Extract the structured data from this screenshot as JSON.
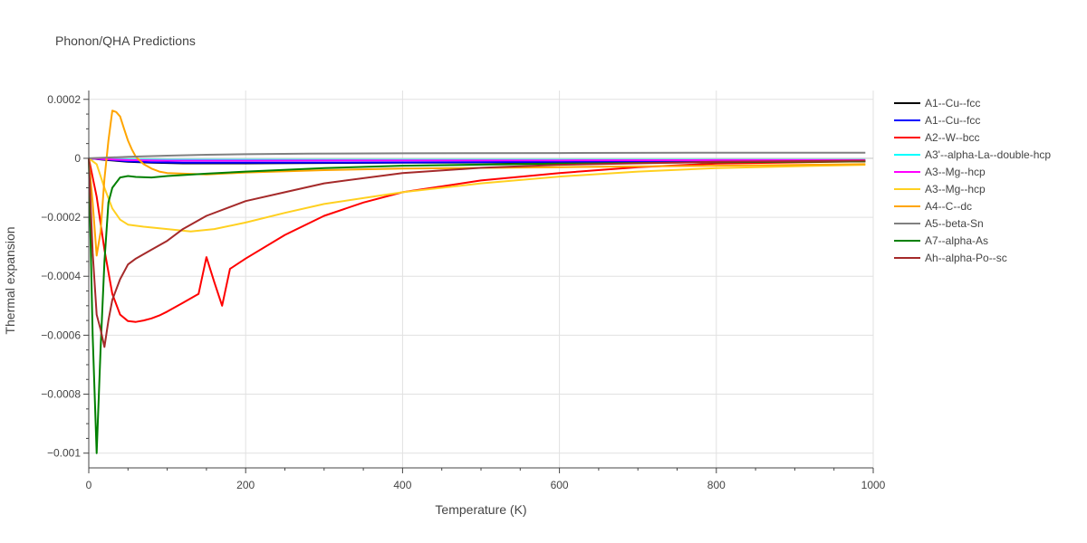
{
  "chart_data": {
    "type": "line",
    "title": "Phonon/QHA Predictions",
    "xlabel": "Temperature (K)",
    "ylabel": "Thermal expansion",
    "xlim": [
      0,
      1000
    ],
    "ylim": [
      -0.00105,
      0.00023
    ],
    "x_ticks": [
      0,
      200,
      400,
      600,
      800,
      1000
    ],
    "x_tick_labels": [
      "0",
      "200",
      "400",
      "600",
      "800",
      "1000"
    ],
    "y_ticks": [
      0.0002,
      0,
      -0.0002,
      -0.0004,
      -0.0006,
      -0.0008,
      -0.001
    ],
    "y_tick_labels": [
      "0.0002",
      "0",
      "−0.0002",
      "−0.0004",
      "−0.0006",
      "−0.0008",
      "−0.001"
    ],
    "grid": true,
    "legend_position": "right",
    "series": [
      {
        "name": "A1--Cu--fcc",
        "color": "#000000",
        "x": [
          0,
          20,
          50,
          80,
          120,
          200,
          400,
          600,
          800,
          990
        ],
        "y": [
          0,
          -5e-06,
          -1.2e-05,
          -1.5e-05,
          -1.7e-05,
          -1.7e-05,
          -1.5e-05,
          -1.3e-05,
          -1.1e-05,
          -1e-05
        ]
      },
      {
        "name": "A1--Cu--fcc",
        "color": "#0000ff",
        "x": [
          0,
          20,
          50,
          80,
          120,
          200,
          400,
          600,
          800,
          990
        ],
        "y": [
          0,
          -4e-06,
          -1e-05,
          -1.3e-05,
          -1.5e-05,
          -1.5e-05,
          -1.4e-05,
          -1.2e-05,
          -1e-05,
          -9e-06
        ]
      },
      {
        "name": "A2--W--bcc",
        "color": "#ff0000",
        "x": [
          0,
          10,
          20,
          30,
          40,
          50,
          60,
          70,
          80,
          90,
          100,
          120,
          140,
          150,
          160,
          170,
          180,
          200,
          250,
          300,
          350,
          400,
          500,
          600,
          700,
          800,
          990
        ],
        "y": [
          0,
          -0.00013,
          -0.00031,
          -0.00046,
          -0.00053,
          -0.000552,
          -0.000555,
          -0.00055,
          -0.000543,
          -0.000533,
          -0.00052,
          -0.00049,
          -0.00046,
          -0.000335,
          -0.00042,
          -0.0005,
          -0.000375,
          -0.00034,
          -0.00026,
          -0.000195,
          -0.00015,
          -0.000115,
          -7.5e-05,
          -5e-05,
          -3e-05,
          -1.8e-05,
          -1e-05
        ]
      },
      {
        "name": "A3'--alpha-La--double-hcp",
        "color": "#00ffff",
        "x": [
          0,
          20,
          50,
          100,
          200,
          400,
          600,
          800,
          990
        ],
        "y": [
          0,
          -2e-06,
          -4e-06,
          -5e-06,
          -5e-06,
          -5e-06,
          -5e-06,
          -5e-06,
          -5e-06
        ]
      },
      {
        "name": "A3--Mg--hcp",
        "color": "#ff00ff",
        "x": [
          0,
          20,
          50,
          100,
          200,
          400,
          600,
          800,
          990
        ],
        "y": [
          0,
          -3e-06,
          -6e-06,
          -8e-06,
          -8e-06,
          -7e-06,
          -7e-06,
          -6e-06,
          -6e-06
        ]
      },
      {
        "name": "A3--Mg--hcp",
        "color": "#ffd020",
        "x": [
          0,
          10,
          20,
          30,
          40,
          50,
          70,
          100,
          130,
          160,
          200,
          250,
          300,
          400,
          500,
          600,
          700,
          800,
          990
        ],
        "y": [
          0,
          -2e-05,
          -0.0001,
          -0.00017,
          -0.000208,
          -0.000225,
          -0.000232,
          -0.00024,
          -0.000248,
          -0.00024,
          -0.000218,
          -0.000185,
          -0.000155,
          -0.000115,
          -8.5e-05,
          -6.2e-05,
          -4.5e-05,
          -3.3e-05,
          -2.2e-05
        ]
      },
      {
        "name": "A4--C--dc",
        "color": "#ffa500",
        "x": [
          0,
          5,
          10,
          15,
          20,
          25,
          30,
          35,
          40,
          45,
          50,
          55,
          60,
          70,
          80,
          90,
          100,
          150,
          200,
          300,
          400,
          600,
          800,
          990
        ],
        "y": [
          0,
          -0.00015,
          -0.00033,
          -0.00025,
          -7e-05,
          6e-05,
          0.000162,
          0.000157,
          0.000142,
          0.0001,
          6e-05,
          3e-05,
          5e-06,
          -2e-05,
          -3.5e-05,
          -4.5e-05,
          -5e-05,
          -5.5e-05,
          -4.8e-05,
          -4e-05,
          -3.5e-05,
          -3e-05,
          -2.5e-05,
          -2e-05
        ]
      },
      {
        "name": "A5--beta-Sn",
        "color": "#808080",
        "x": [
          0,
          50,
          100,
          150,
          200,
          280,
          400,
          600,
          800,
          990
        ],
        "y": [
          0,
          5e-06,
          9e-06,
          1.2e-05,
          1.4e-05,
          1.6e-05,
          1.7e-05,
          1.8e-05,
          1.9e-05,
          1.9e-05
        ]
      },
      {
        "name": "A7--alpha-As",
        "color": "#008000",
        "x": [
          0,
          5,
          10,
          15,
          20,
          25,
          30,
          40,
          50,
          60,
          80,
          100,
          150,
          200,
          300,
          400,
          600,
          800,
          990
        ],
        "y": [
          0,
          -0.0006,
          -0.001,
          -0.00065,
          -0.00035,
          -0.00015,
          -0.0001,
          -6.5e-05,
          -6e-05,
          -6.3e-05,
          -6.5e-05,
          -6e-05,
          -5.2e-05,
          -4.5e-05,
          -3.3e-05,
          -2.5e-05,
          -1.8e-05,
          -1.3e-05,
          -1e-05
        ]
      },
      {
        "name": "Ah--alpha-Po--sc",
        "color": "#a52a2a",
        "x": [
          0,
          5,
          10,
          15,
          20,
          25,
          30,
          40,
          50,
          60,
          80,
          100,
          120,
          150,
          180,
          200,
          250,
          300,
          400,
          500,
          600,
          800,
          990
        ],
        "y": [
          0,
          -0.00032,
          -0.00053,
          -0.00058,
          -0.00064,
          -0.00055,
          -0.00048,
          -0.00041,
          -0.00036,
          -0.00034,
          -0.00031,
          -0.00028,
          -0.00024,
          -0.000195,
          -0.000165,
          -0.000145,
          -0.000115,
          -8.5e-05,
          -5e-05,
          -3.2e-05,
          -2.2e-05,
          -1.2e-05,
          -8e-06
        ]
      }
    ]
  }
}
